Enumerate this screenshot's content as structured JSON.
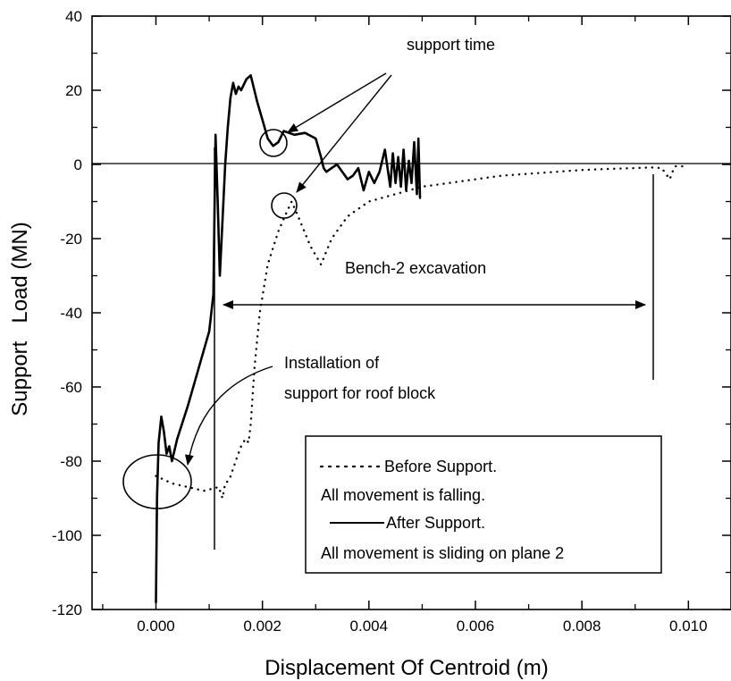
{
  "chart_data": {
    "type": "line",
    "title": "",
    "xlabel": "Displacement Of Centroid (m)",
    "ylabel": "Support   Load (MN)",
    "xlim": [
      -0.0012,
      0.0108
    ],
    "ylim": [
      -120,
      40
    ],
    "xticks": [
      "0.000",
      "0.002",
      "0.004",
      "0.006",
      "0.008",
      "0.010"
    ],
    "yticks": [
      "40",
      "20",
      "0",
      "-20",
      "-40",
      "-60",
      "-80",
      "-100",
      "-120"
    ],
    "grid": false,
    "series": [
      {
        "name": "Before Support.",
        "style": "dotted",
        "color": "#000000",
        "x": [
          0.0,
          0.0003,
          0.0006,
          0.0009,
          0.00118,
          0.00125,
          0.0013,
          0.00138,
          0.00145,
          0.00152,
          0.0016,
          0.00168,
          0.00174,
          0.00178,
          0.00185,
          0.00195,
          0.0021,
          0.0023,
          0.00245,
          0.00255,
          0.0027,
          0.0029,
          0.0031,
          0.0033,
          0.0036,
          0.004,
          0.0045,
          0.005,
          0.0055,
          0.006,
          0.0065,
          0.007,
          0.0075,
          0.008,
          0.0085,
          0.009,
          0.0093,
          0.0095,
          0.00965,
          0.0097,
          0.00975,
          0.0098,
          0.0099
        ],
        "y": [
          -84,
          -86,
          -87,
          -88,
          -87,
          -90,
          -86,
          -85,
          -82,
          -79,
          -76,
          -74,
          -75,
          -70,
          -55,
          -40,
          -27,
          -18,
          -13,
          -10,
          -15,
          -22,
          -27,
          -20,
          -14,
          -10,
          -8,
          -6,
          -5,
          -4,
          -3,
          -2.5,
          -2,
          -1.5,
          -1.2,
          -1,
          -0.8,
          -1,
          -4,
          -2,
          -0.5,
          -0.5,
          -0.5
        ]
      },
      {
        "name": "After Support.",
        "style": "solid",
        "color": "#000000",
        "x": [
          0.0,
          2e-05,
          5e-05,
          0.0001,
          0.00015,
          0.0002,
          0.00025,
          0.0003,
          0.0004,
          0.0006,
          0.0008,
          0.001,
          0.00108,
          0.00112,
          0.00116,
          0.0012,
          0.00125,
          0.0013,
          0.00135,
          0.0014,
          0.00145,
          0.0015,
          0.00155,
          0.0016,
          0.0017,
          0.00178,
          0.0019,
          0.002,
          0.0021,
          0.0022,
          0.0023,
          0.0024,
          0.0026,
          0.0028,
          0.003,
          0.0031,
          0.00315,
          0.0032,
          0.0033,
          0.0034,
          0.0035,
          0.0036,
          0.0037,
          0.0038,
          0.0039,
          0.004,
          0.0041,
          0.0042,
          0.0043,
          0.0044,
          0.00445,
          0.0045,
          0.00455,
          0.0046,
          0.00465,
          0.0047,
          0.00475,
          0.0048,
          0.00485,
          0.0049,
          0.00493,
          0.00496
        ],
        "y": [
          -118,
          -90,
          -75,
          -68,
          -72,
          -78,
          -76,
          -80,
          -74,
          -65,
          -55,
          -45,
          -35,
          8,
          -10,
          -30,
          -15,
          0,
          10,
          18,
          22,
          19,
          21,
          20,
          23,
          24,
          17,
          12,
          7,
          5,
          6,
          9,
          8,
          8.5,
          7,
          2,
          -1,
          -2,
          -1,
          0,
          -2,
          -4,
          -3,
          -1,
          -7,
          -2,
          -5,
          -2,
          4,
          -6,
          3,
          -5,
          2,
          -6,
          4,
          -7,
          1,
          -5,
          6,
          -8,
          7,
          -9
        ]
      }
    ],
    "annotations": [
      "support time",
      "Bench-2 excavation",
      "Installation of",
      "support for roof block"
    ],
    "legend": {
      "position": "bottom-right",
      "lines": [
        "Before Support.",
        "All movement is falling.",
        "After Support.",
        "All movement is sliding on plane 2"
      ]
    }
  }
}
